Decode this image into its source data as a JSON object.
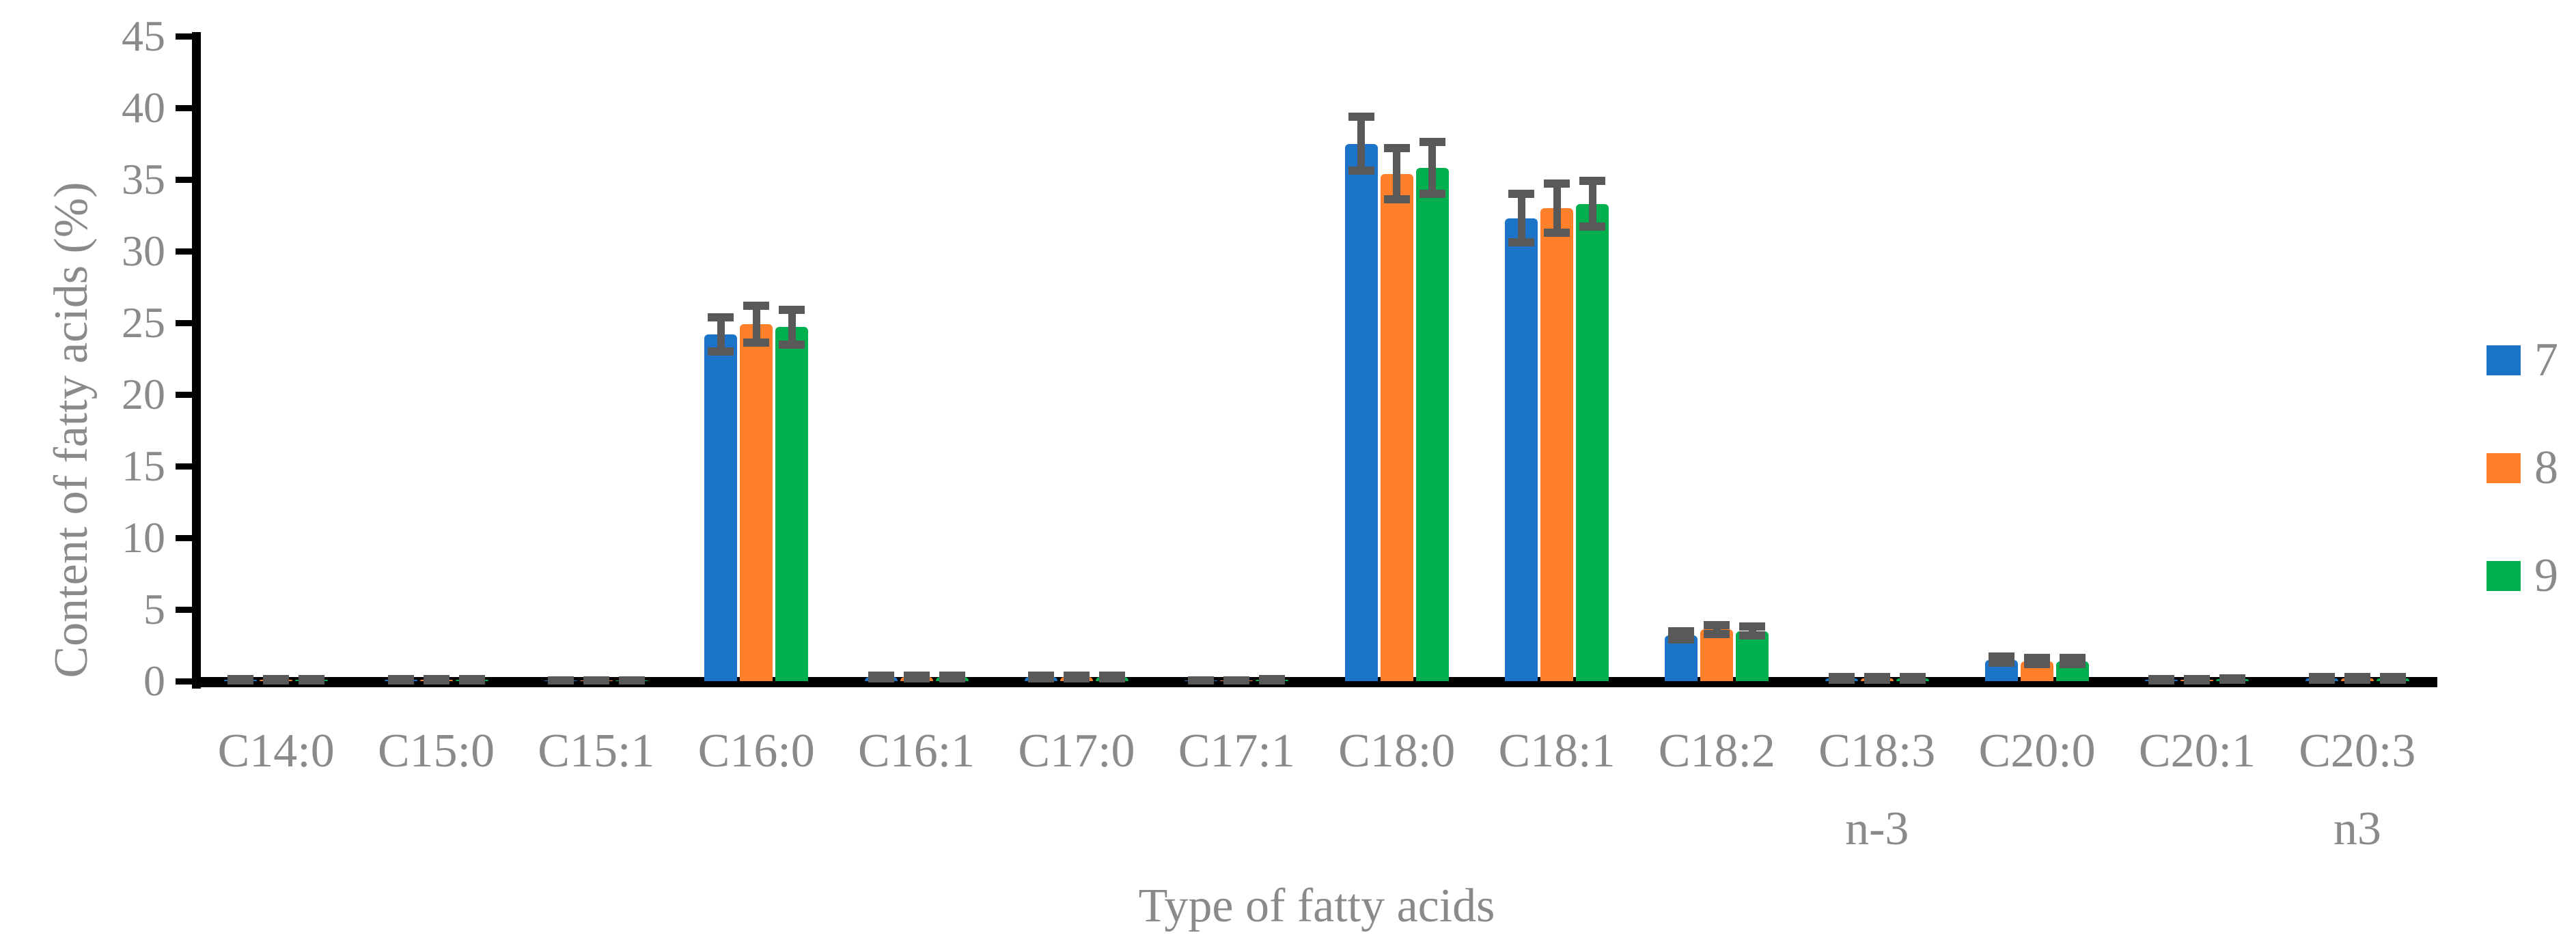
{
  "page": {
    "background": "#ffffff"
  },
  "colors": {
    "series_blue": "#1b74c8",
    "series_orange": "#ff7f2b",
    "series_green": "#00b04f",
    "error_bar": "#595959",
    "axis": "#000000",
    "text": "#8a8a8a"
  },
  "chart_data": {
    "type": "bar",
    "title": "",
    "xlabel": "Type of fatty acids",
    "ylabel": "Content of fatty acids (%)",
    "ylim": [
      0,
      45
    ],
    "yticks": [
      0,
      5,
      10,
      15,
      20,
      25,
      30,
      35,
      40,
      45
    ],
    "grid": false,
    "legend_position": "right",
    "error_bars": true,
    "error_bar_color": "#595959",
    "categories": [
      {
        "label": "C14:0",
        "sub": ""
      },
      {
        "label": "C15:0",
        "sub": ""
      },
      {
        "label": "C15:1",
        "sub": ""
      },
      {
        "label": "C16:0",
        "sub": ""
      },
      {
        "label": "C16:1",
        "sub": ""
      },
      {
        "label": "C17:0",
        "sub": ""
      },
      {
        "label": "C17:1",
        "sub": ""
      },
      {
        "label": "C18:0",
        "sub": ""
      },
      {
        "label": "C18:1",
        "sub": ""
      },
      {
        "label": "C18:2",
        "sub": ""
      },
      {
        "label": "C18:3",
        "sub": "n-3"
      },
      {
        "label": "C20:0",
        "sub": ""
      },
      {
        "label": "C20:1",
        "sub": ""
      },
      {
        "label": "C20:3",
        "sub": "n3"
      }
    ],
    "series": [
      {
        "name": "7",
        "color": "#1b74c8",
        "values": [
          0.1,
          0.1,
          0.05,
          24.2,
          0.3,
          0.3,
          0.05,
          37.5,
          32.3,
          3.2,
          0.2,
          1.5,
          0.1,
          0.2
        ],
        "errors": [
          0.05,
          0.05,
          0.02,
          1.2,
          0.1,
          0.1,
          0.02,
          1.9,
          1.7,
          0.3,
          0.1,
          0.2,
          0.05,
          0.1
        ]
      },
      {
        "name": "8",
        "color": "#ff7f2b",
        "values": [
          0.1,
          0.1,
          0.05,
          24.9,
          0.3,
          0.3,
          0.05,
          35.4,
          33.0,
          3.6,
          0.2,
          1.4,
          0.1,
          0.2
        ],
        "errors": [
          0.05,
          0.05,
          0.02,
          1.3,
          0.1,
          0.1,
          0.02,
          1.8,
          1.7,
          0.3,
          0.1,
          0.2,
          0.05,
          0.1
        ]
      },
      {
        "name": "9",
        "color": "#00b04f",
        "values": [
          0.1,
          0.1,
          0.05,
          24.7,
          0.3,
          0.3,
          0.1,
          35.8,
          33.3,
          3.5,
          0.2,
          1.4,
          0.15,
          0.2
        ],
        "errors": [
          0.05,
          0.05,
          0.02,
          1.2,
          0.1,
          0.1,
          0.05,
          1.8,
          1.6,
          0.3,
          0.1,
          0.2,
          0.05,
          0.1
        ]
      }
    ]
  }
}
